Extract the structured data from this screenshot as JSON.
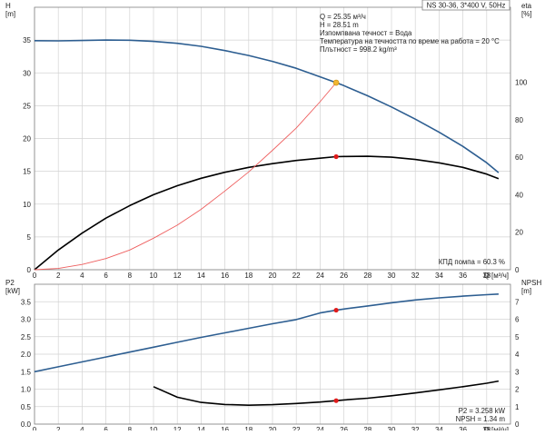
{
  "chart_data": [
    {
      "type": "line",
      "title": "NS 30-36, 3*400 V, 50Hz",
      "xlabel": "Q [м³/ч]",
      "ylabel_left": "H",
      "ylabel_left_unit": "[m]",
      "ylabel_right": "eta",
      "ylabel_right_unit": "[%]",
      "xlim": [
        0,
        40
      ],
      "ylim_left": [
        0,
        40
      ],
      "ylim_right": [
        0,
        140
      ],
      "x_ticks": [
        0,
        2,
        4,
        6,
        8,
        10,
        12,
        14,
        16,
        18,
        20,
        22,
        24,
        26,
        28,
        30,
        32,
        34,
        36,
        38
      ],
      "y_ticks_left": [
        0,
        5,
        10,
        15,
        20,
        25,
        30,
        35
      ],
      "y_ticks_right": [
        0,
        20,
        40,
        60,
        80,
        100
      ],
      "grid": true,
      "info_lines": [
        "Q = 25.35 м³/ч",
        "H = 28.51 m",
        "Изпомпвана течност = Вода",
        "Температура на течността по време на работа = 20 °C",
        "Плътност = 998.2 kg/m³"
      ],
      "annotation": "КПД помпа = 60.3 %",
      "series": [
        {
          "axis": "left",
          "color": "#2d5e91",
          "x": [
            0,
            2,
            4,
            6,
            8,
            10,
            12,
            14,
            16,
            18,
            20,
            22,
            24,
            25.35,
            26,
            28,
            30,
            32,
            34,
            36,
            38,
            39
          ],
          "y": [
            34.9,
            34.88,
            34.93,
            35.0,
            34.97,
            34.8,
            34.5,
            34.05,
            33.4,
            32.65,
            31.75,
            30.7,
            29.4,
            28.51,
            28.05,
            26.5,
            24.8,
            22.95,
            20.95,
            18.8,
            16.3,
            14.8
          ]
        },
        {
          "axis": "right",
          "color": "#000000",
          "x": [
            0,
            2,
            4,
            6,
            8,
            10,
            12,
            14,
            16,
            18,
            20,
            22,
            24,
            25.35,
            26,
            28,
            30,
            32,
            34,
            36,
            38,
            39
          ],
          "y": [
            0,
            10.5,
            19.5,
            27.5,
            34.2,
            40.0,
            44.8,
            48.8,
            52.0,
            54.6,
            56.6,
            58.3,
            59.5,
            60.3,
            60.4,
            60.5,
            60.0,
            58.8,
            57.0,
            54.6,
            51.0,
            48.6
          ]
        },
        {
          "axis": "left",
          "color": "#ee5f5f",
          "x": [
            0,
            2,
            4,
            6,
            8,
            10,
            12,
            14,
            16,
            18,
            20,
            22,
            24,
            25.35
          ],
          "y": [
            0,
            0.2,
            0.8,
            1.7,
            3.0,
            4.8,
            6.8,
            9.2,
            12.0,
            14.9,
            18.2,
            21.6,
            25.6,
            28.51
          ]
        }
      ],
      "duty_point": {
        "x": 25.35,
        "y": 28.51,
        "color": "#f2b632"
      },
      "eta_point": {
        "x": 25.35,
        "y": 60.3,
        "color": "#e01b1b"
      }
    },
    {
      "type": "line",
      "xlabel": "Q [м³/ч]",
      "ylabel_left": "P2",
      "ylabel_left_unit": "[kW]",
      "ylabel_right": "NPSH",
      "ylabel_right_unit": "[m]",
      "xlim": [
        0,
        40
      ],
      "ylim_left": [
        0,
        4
      ],
      "ylim_right": [
        0,
        8
      ],
      "x_ticks": [
        0,
        2,
        4,
        6,
        8,
        10,
        12,
        14,
        16,
        18,
        20,
        22,
        24,
        26,
        28,
        30,
        32,
        34,
        36,
        38
      ],
      "y_ticks_left": [
        "0.0",
        "0.5",
        "1.0",
        "1.5",
        "2.0",
        "2.5",
        "3.0",
        "3.5"
      ],
      "y_ticks_right": [
        0,
        1,
        2,
        3,
        4,
        5,
        6,
        7
      ],
      "grid": true,
      "info_lines": [
        "P2 = 3.258 kW",
        "NPSH = 1.34 m"
      ],
      "series": [
        {
          "axis": "left",
          "color": "#2d5e91",
          "x": [
            0,
            2,
            4,
            6,
            8,
            10,
            12,
            14,
            16,
            18,
            20,
            22,
            24,
            25.35,
            26,
            28,
            30,
            32,
            34,
            36,
            38,
            39
          ],
          "y": [
            1.5,
            1.64,
            1.78,
            1.92,
            2.06,
            2.2,
            2.34,
            2.48,
            2.61,
            2.74,
            2.87,
            2.99,
            3.18,
            3.258,
            3.29,
            3.38,
            3.47,
            3.55,
            3.61,
            3.66,
            3.7,
            3.72
          ]
        },
        {
          "axis": "right",
          "color": "#000000",
          "x": [
            10,
            12,
            14,
            16,
            18,
            20,
            22,
            24,
            25.35,
            26,
            28,
            30,
            32,
            34,
            36,
            38,
            39
          ],
          "y": [
            2.14,
            1.54,
            1.24,
            1.12,
            1.08,
            1.11,
            1.18,
            1.26,
            1.34,
            1.38,
            1.48,
            1.62,
            1.78,
            1.96,
            2.14,
            2.34,
            2.46
          ]
        }
      ],
      "duty_points": [
        {
          "x": 25.35,
          "y": 3.258,
          "axis": "left",
          "color": "#e01b1b"
        },
        {
          "x": 25.35,
          "y": 1.34,
          "axis": "right",
          "color": "#e01b1b"
        }
      ]
    }
  ]
}
